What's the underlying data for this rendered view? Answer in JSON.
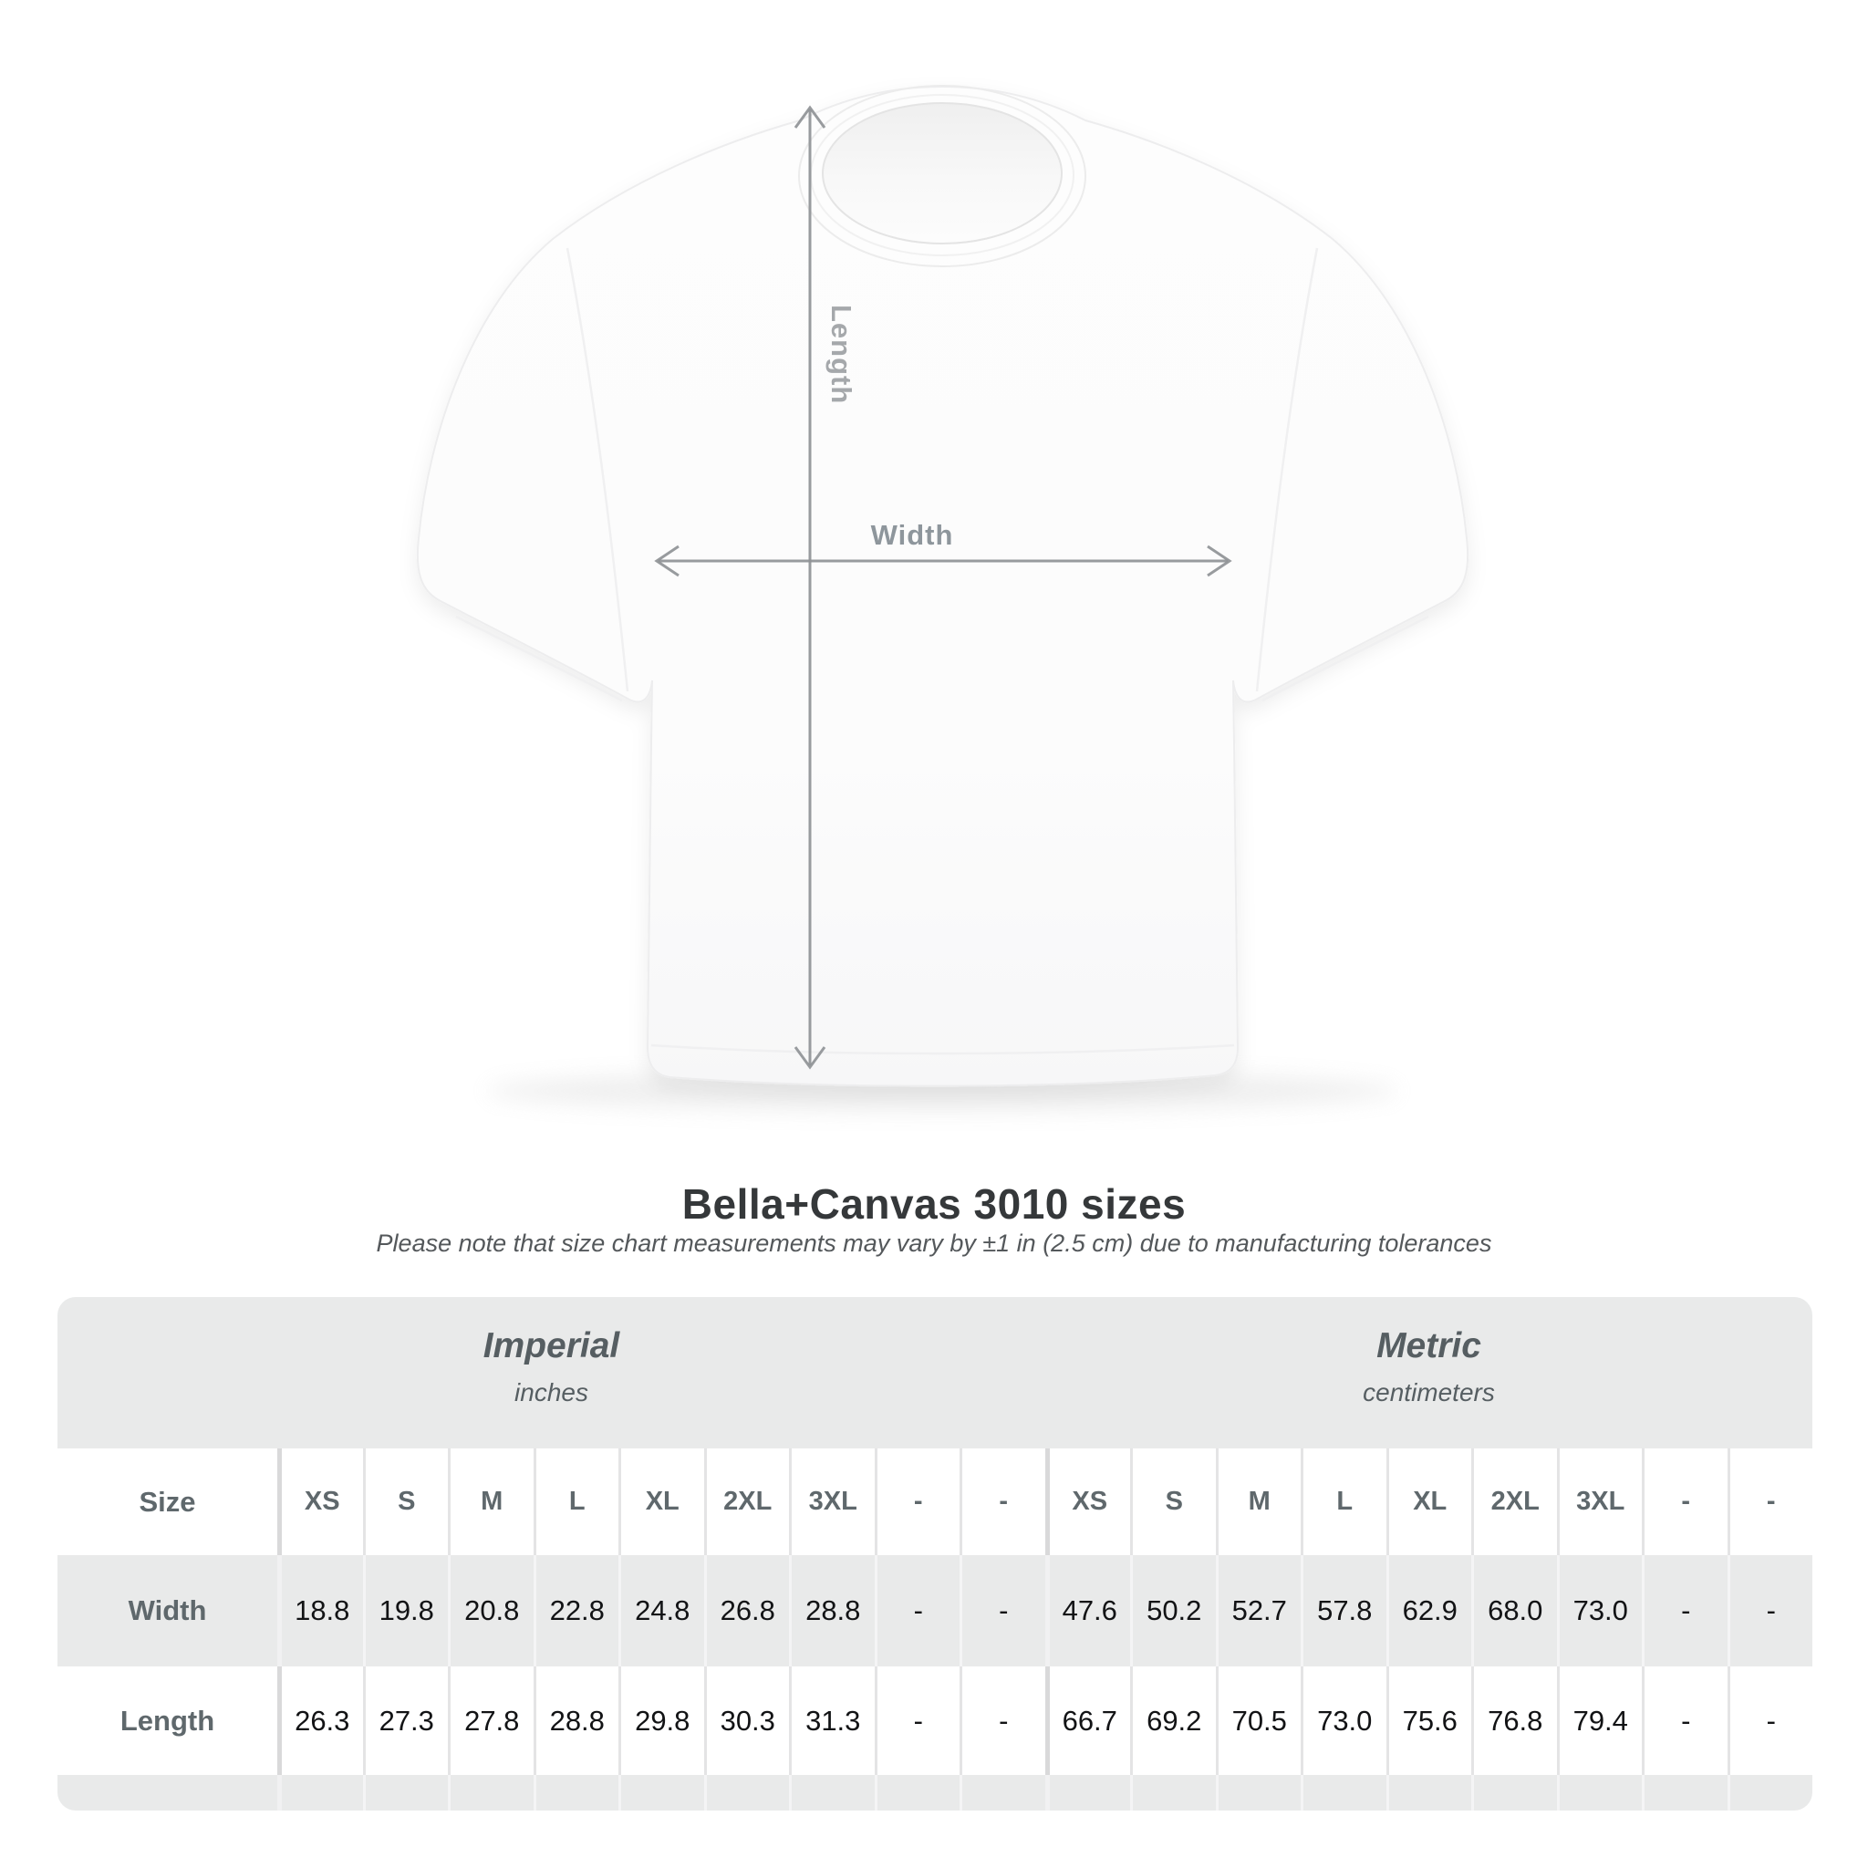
{
  "title": "Bella+Canvas 3010 sizes",
  "subtitle": "Please note that size chart measurements may vary by ±1 in (2.5 cm) due to manufacturing tolerances",
  "diagram": {
    "length_label": "Length",
    "width_label": "Width",
    "line_color": "#8f9396",
    "width_label_color": "#8e969c",
    "length_label_color": "#a5a8ab",
    "shirt_color": "#fdfdfd"
  },
  "size_table": {
    "units": {
      "imperial": {
        "title": "Imperial",
        "subtitle": "inches"
      },
      "metric": {
        "title": "Metric",
        "subtitle": "centimeters"
      }
    },
    "header": {
      "label": "Size",
      "cells": [
        "XS",
        "S",
        "M",
        "L",
        "XL",
        "2XL",
        "3XL",
        "-",
        "-",
        "XS",
        "S",
        "M",
        "L",
        "XL",
        "2XL",
        "3XL",
        "-",
        "-"
      ]
    },
    "rows": [
      {
        "label": "Width",
        "cells": [
          "18.8",
          "19.8",
          "20.8",
          "22.8",
          "24.8",
          "26.8",
          "28.8",
          "-",
          "-",
          "47.6",
          "50.2",
          "52.7",
          "57.8",
          "62.9",
          "68.0",
          "73.0",
          "-",
          "-"
        ]
      },
      {
        "label": "Length",
        "cells": [
          "26.3",
          "27.3",
          "27.8",
          "28.8",
          "29.8",
          "30.3",
          "31.3",
          "-",
          "-",
          "66.7",
          "69.2",
          "70.5",
          "73.0",
          "75.6",
          "76.8",
          "79.4",
          "-",
          "-"
        ]
      }
    ],
    "colors": {
      "band_bg": "#e9eaea",
      "alt_row_bg": "#e9eaea",
      "header_text": "#5f686c",
      "value_text": "#121315",
      "title_text": "#35383a",
      "thin_divider": "#e4e4e5",
      "thick_divider": "#d9d9da"
    }
  }
}
